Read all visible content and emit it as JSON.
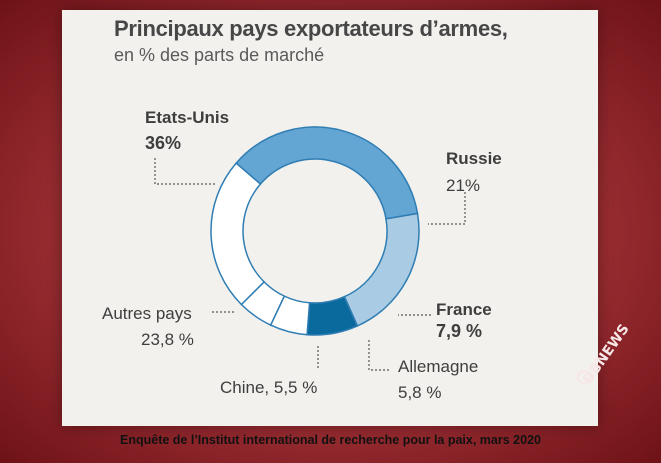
{
  "chart_data": {
    "type": "pie",
    "title": "Principaux pays exportateurs d’armes,",
    "subtitle": "en % des parts de marché",
    "slices": [
      {
        "name": "Etats-Unis",
        "value": 36,
        "value_label": "36%",
        "color": "#63a6d3"
      },
      {
        "name": "Russie",
        "value": 21,
        "value_label": "21%",
        "color": "#a9cbe3"
      },
      {
        "name": "France",
        "value": 7.9,
        "value_label": "7,9 %",
        "color": "#0b6a9d"
      },
      {
        "name": "Allemagne",
        "value": 5.8,
        "value_label": "5,8 %",
        "color": "#ffffff"
      },
      {
        "name": "Chine",
        "value": 5.5,
        "value_label": "Chine, 5,5 %",
        "color": "#ffffff"
      },
      {
        "name": "Autres pays",
        "value": 23.8,
        "value_label": "23,8 %",
        "color": "#ffffff"
      }
    ]
  },
  "caption": "Enquête de l’Institut international de recherche pour la paix, mars 2020",
  "watermark": "DBNEWS"
}
